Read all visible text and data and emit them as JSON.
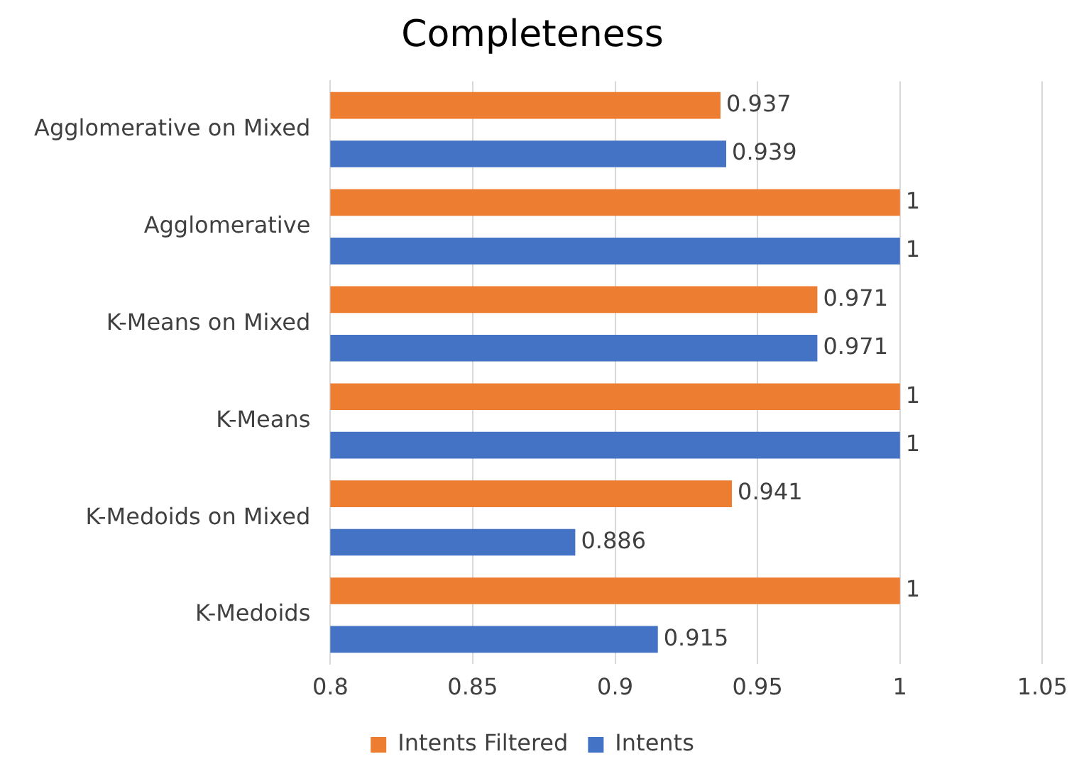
{
  "chart_data": {
    "type": "bar",
    "title": "Completeness",
    "orientation": "horizontal",
    "categories": [
      "Agglomerative on Mixed",
      "Agglomerative",
      "K-Means on Mixed",
      "K-Means",
      "K-Medoids on Mixed",
      "K-Medoids"
    ],
    "series": [
      {
        "name": "Intents Filtered",
        "color": "#ed7d31",
        "values": [
          0.937,
          1,
          0.971,
          1,
          0.941,
          1
        ]
      },
      {
        "name": "Intents",
        "color": "#4472c4",
        "values": [
          0.939,
          1,
          0.971,
          1,
          0.886,
          0.915
        ]
      }
    ],
    "xlim": [
      0.8,
      1.05
    ],
    "xticks": [
      0.8,
      0.85,
      0.9,
      0.95,
      1,
      1.05
    ],
    "grid": "x",
    "legend": "bottom",
    "data_labels": true
  }
}
